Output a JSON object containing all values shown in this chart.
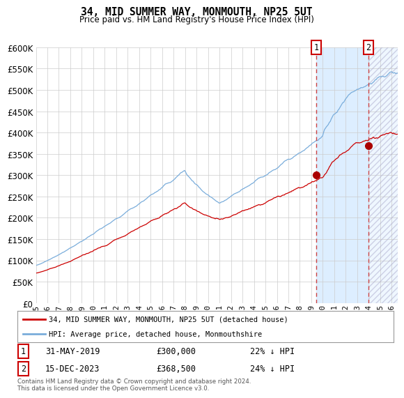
{
  "title": "34, MID SUMMER WAY, MONMOUTH, NP25 5UT",
  "subtitle": "Price paid vs. HM Land Registry's House Price Index (HPI)",
  "hpi_label": "HPI: Average price, detached house, Monmouthshire",
  "price_label": "34, MID SUMMER WAY, MONMOUTH, NP25 5UT (detached house)",
  "hpi_color": "#7aaddb",
  "price_color": "#cc0000",
  "marker_color": "#aa0000",
  "vline_color": "#cc4444",
  "shade_color": "#ddeeff",
  "hatch_color": "#bbbbcc",
  "point1_date": 2019.41,
  "point1_price": 300000,
  "point2_date": 2023.958,
  "point2_price": 368500,
  "xmin": 1995.0,
  "xmax": 2026.5,
  "ymin": 0,
  "ymax": 600000,
  "ytick_vals": [
    0,
    50000,
    100000,
    150000,
    200000,
    250000,
    300000,
    350000,
    400000,
    450000,
    500000,
    550000,
    600000
  ],
  "footnote": "Contains HM Land Registry data © Crown copyright and database right 2024.\nThis data is licensed under the Open Government Licence v3.0.",
  "grid_color": "#cccccc",
  "bg_color": "#ffffff",
  "ann1_date": "31-MAY-2019",
  "ann1_price": "£300,000",
  "ann1_pct": "22% ↓ HPI",
  "ann2_date": "15-DEC-2023",
  "ann2_price": "£368,500",
  "ann2_pct": "24% ↓ HPI"
}
